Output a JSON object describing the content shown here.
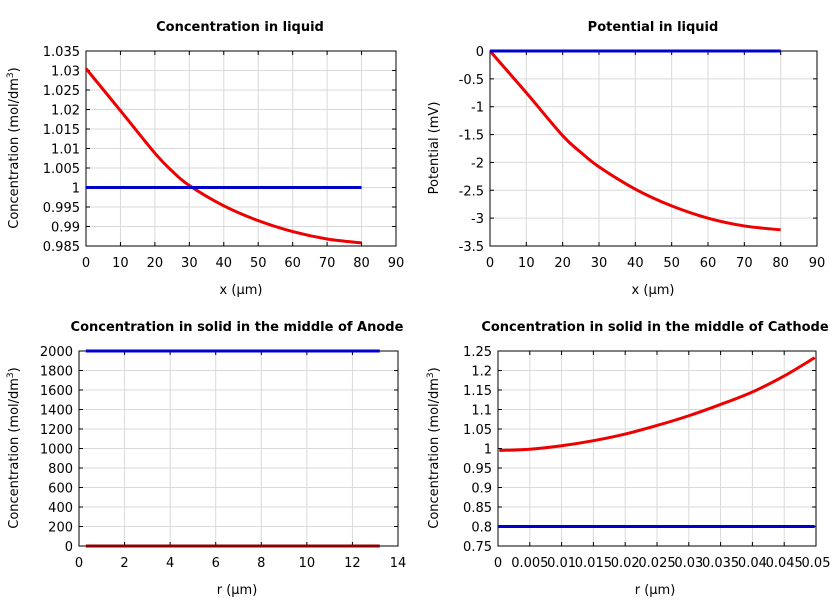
{
  "chart_data": [
    {
      "type": "line",
      "title": "Concentration in liquid",
      "xlabel": "x (µm)",
      "ylabel": "Concentration (mol/dm3)",
      "ylabel_base": "Concentration (mol/dm",
      "ylabel_sup": "3",
      "ylabel_close": ")",
      "xlim": [
        0,
        90
      ],
      "ylim": [
        0.985,
        1.035
      ],
      "xticks": [
        "0",
        "10",
        "20",
        "30",
        "40",
        "50",
        "60",
        "70",
        "80",
        "90"
      ],
      "yticks": [
        "1.035",
        "1.03",
        "1.025",
        "1.02",
        "1.015",
        "1.01",
        "1.005",
        "1",
        "0.995",
        "0.99",
        "0.985"
      ],
      "grid": true,
      "series": [
        {
          "color": "#ee0000",
          "x": [
            0,
            10,
            20,
            25,
            30,
            40,
            50,
            60,
            70,
            80
          ],
          "y": [
            1.0305,
            1.0197,
            1.0088,
            1.0042,
            1.0005,
            0.9953,
            0.9915,
            0.9887,
            0.9868,
            0.9858
          ]
        },
        {
          "color": "#0000cc",
          "x": [
            0,
            80
          ],
          "y": [
            1.0,
            1.0
          ]
        }
      ]
    },
    {
      "type": "line",
      "title": "Potential in liquid",
      "xlabel": "x (µm)",
      "ylabel": "Potential (mV)",
      "xlim": [
        0,
        90
      ],
      "ylim": [
        -3.5,
        0
      ],
      "xticks": [
        "0",
        "10",
        "20",
        "30",
        "40",
        "50",
        "60",
        "70",
        "80",
        "90"
      ],
      "yticks": [
        "0",
        "-0.5",
        "-1",
        "-1.5",
        "-2",
        "-2.5",
        "-3",
        "-3.5"
      ],
      "grid": true,
      "series": [
        {
          "color": "#ee0000",
          "x": [
            0,
            10,
            20,
            25,
            30,
            40,
            50,
            60,
            70,
            80
          ],
          "y": [
            0,
            -0.75,
            -1.52,
            -1.82,
            -2.08,
            -2.48,
            -2.78,
            -3.0,
            -3.14,
            -3.21
          ]
        },
        {
          "color": "#0000cc",
          "x": [
            0,
            80
          ],
          "y": [
            0,
            0
          ]
        }
      ]
    },
    {
      "type": "line",
      "title": "Concentration in solid in the middle of Anode",
      "xlabel": "r (µm)",
      "ylabel": "Concentration (mol/dm3)",
      "ylabel_base": "Concentration (mol/dm",
      "ylabel_sup": "3",
      "ylabel_close": ")",
      "xlim": [
        0,
        14
      ],
      "ylim": [
        0,
        2000
      ],
      "xticks": [
        "0",
        "2",
        "4",
        "6",
        "8",
        "10",
        "12",
        "14"
      ],
      "yticks": [
        "2000",
        "1800",
        "1600",
        "1400",
        "1200",
        "1000",
        "800",
        "600",
        "400",
        "200",
        "0"
      ],
      "grid": true,
      "series": [
        {
          "color": "#0000cc",
          "x": [
            0.3,
            13.2
          ],
          "y": [
            2000,
            2000
          ]
        },
        {
          "color": "#8b0000",
          "x": [
            0.3,
            13.2
          ],
          "y": [
            0,
            0
          ]
        }
      ]
    },
    {
      "type": "line",
      "title": "Concentration in solid in the middle of Cathode",
      "xlabel": "r (µm)",
      "ylabel": "Concentration (mol/dm3)",
      "ylabel_base": "Concentration (mol/dm",
      "ylabel_sup": "3",
      "ylabel_close": ")",
      "xlim": [
        0,
        0.05
      ],
      "ylim": [
        0.75,
        1.25
      ],
      "xticks": [
        "0",
        "0.005",
        "0.01",
        "0.015",
        "0.02",
        "0.025",
        "0.03",
        "0.035",
        "0.04",
        "0.045",
        "0.05"
      ],
      "yticks": [
        "1.25",
        "1.2",
        "1.15",
        "1.1",
        "1.05",
        "1",
        "0.95",
        "0.9",
        "0.85",
        "0.8",
        "0.75"
      ],
      "grid": true,
      "series": [
        {
          "color": "#ee0000",
          "x": [
            0.0002,
            0.005,
            0.01,
            0.015,
            0.02,
            0.025,
            0.03,
            0.035,
            0.04,
            0.045,
            0.0498
          ],
          "y": [
            0.995,
            0.998,
            1.007,
            1.02,
            1.037,
            1.059,
            1.084,
            1.113,
            1.145,
            1.186,
            1.233
          ]
        },
        {
          "color": "#0000cc",
          "x": [
            0,
            0.0498
          ],
          "y": [
            0.8,
            0.8
          ]
        }
      ]
    }
  ]
}
